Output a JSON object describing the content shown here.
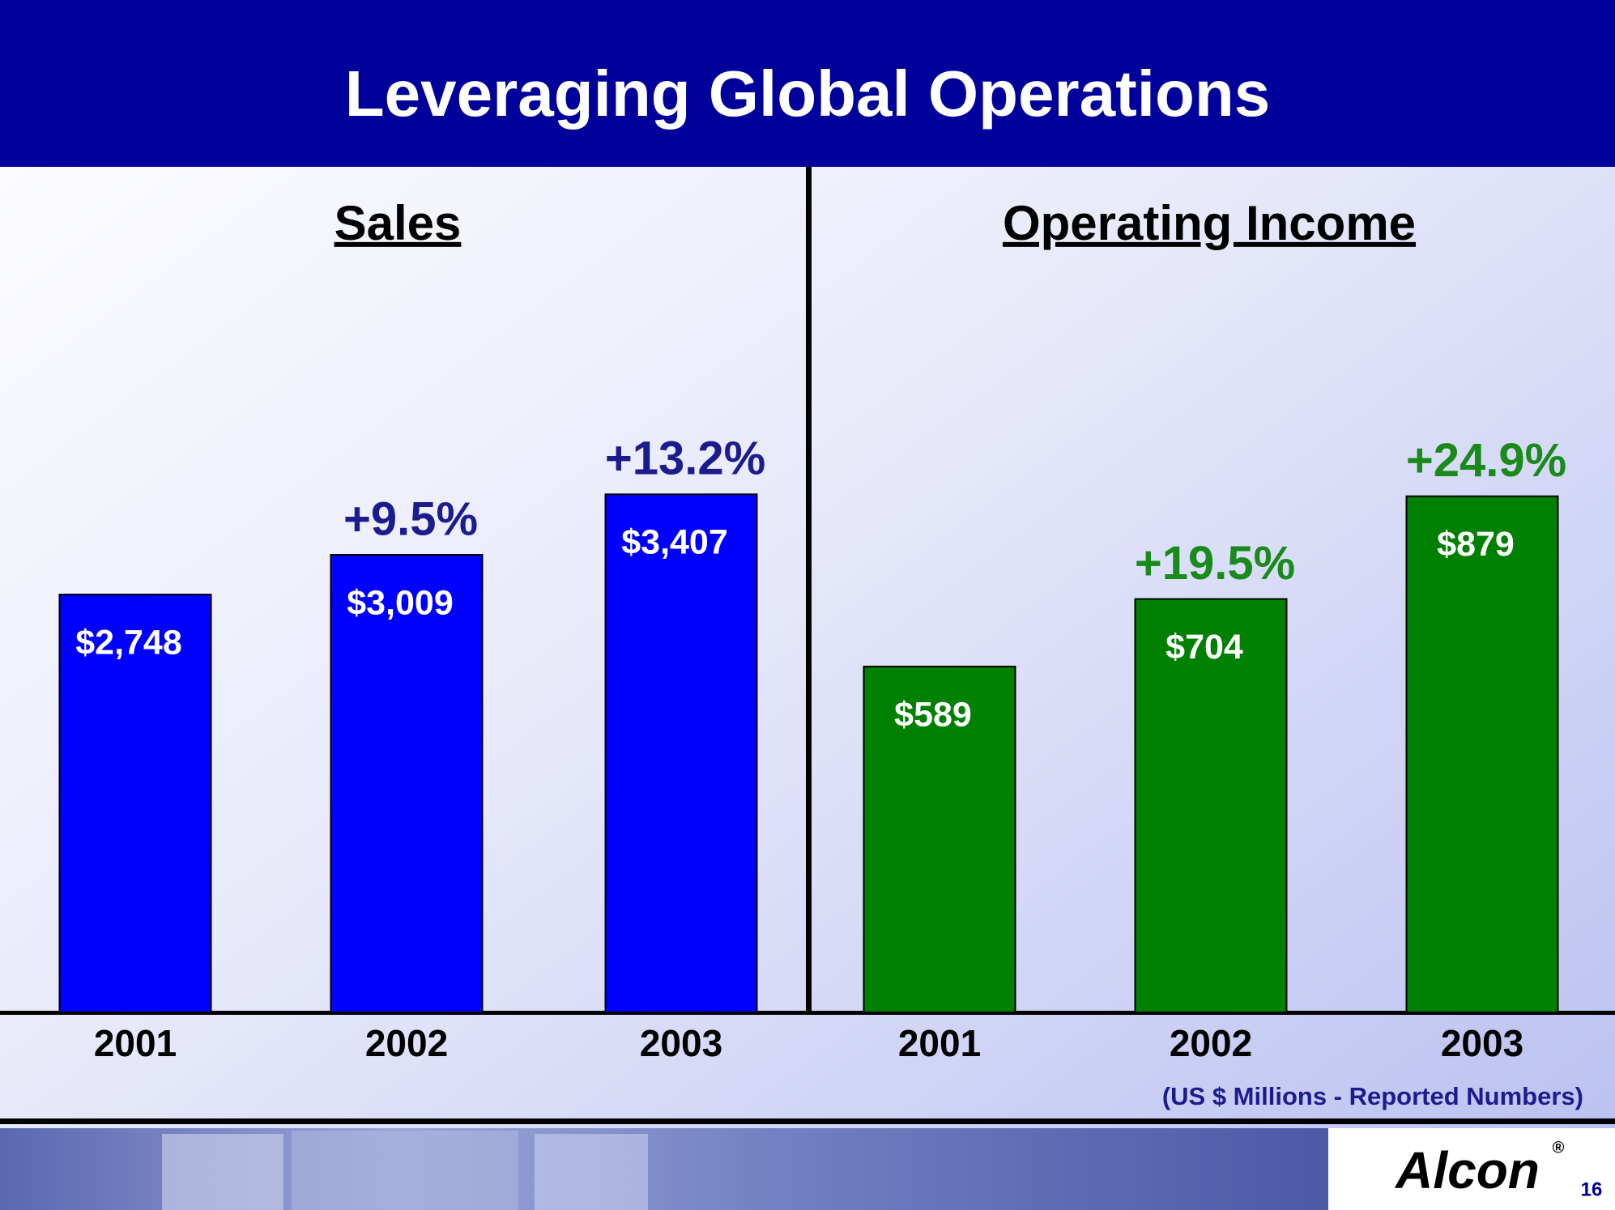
{
  "title": "Leveraging Global Operations",
  "chart_data": [
    {
      "type": "bar",
      "title": "Sales",
      "categories": [
        "2001",
        "2002",
        "2003"
      ],
      "values": [
        2748,
        3009,
        3407
      ],
      "value_labels": [
        "$2,748",
        "$3,009",
        "$3,407"
      ],
      "annotations": [
        null,
        "+9.5%",
        "+13.2%"
      ],
      "color": "#0000ff",
      "annotation_color": "#1c1c8e",
      "ylim": [
        0,
        4000
      ]
    },
    {
      "type": "bar",
      "title": "Operating Income",
      "categories": [
        "2001",
        "2002",
        "2003"
      ],
      "values": [
        589,
        704,
        879
      ],
      "value_labels": [
        "$589",
        "$704",
        "$879"
      ],
      "annotations": [
        null,
        "+19.5%",
        "+24.9%"
      ],
      "color": "#008000",
      "annotation_color": "#1a8a1a",
      "ylim": [
        0,
        1000
      ]
    }
  ],
  "footnote": "(US $ Millions - Reported Numbers)",
  "logo": "Alcon",
  "logo_mark": "®",
  "page_number": "16"
}
